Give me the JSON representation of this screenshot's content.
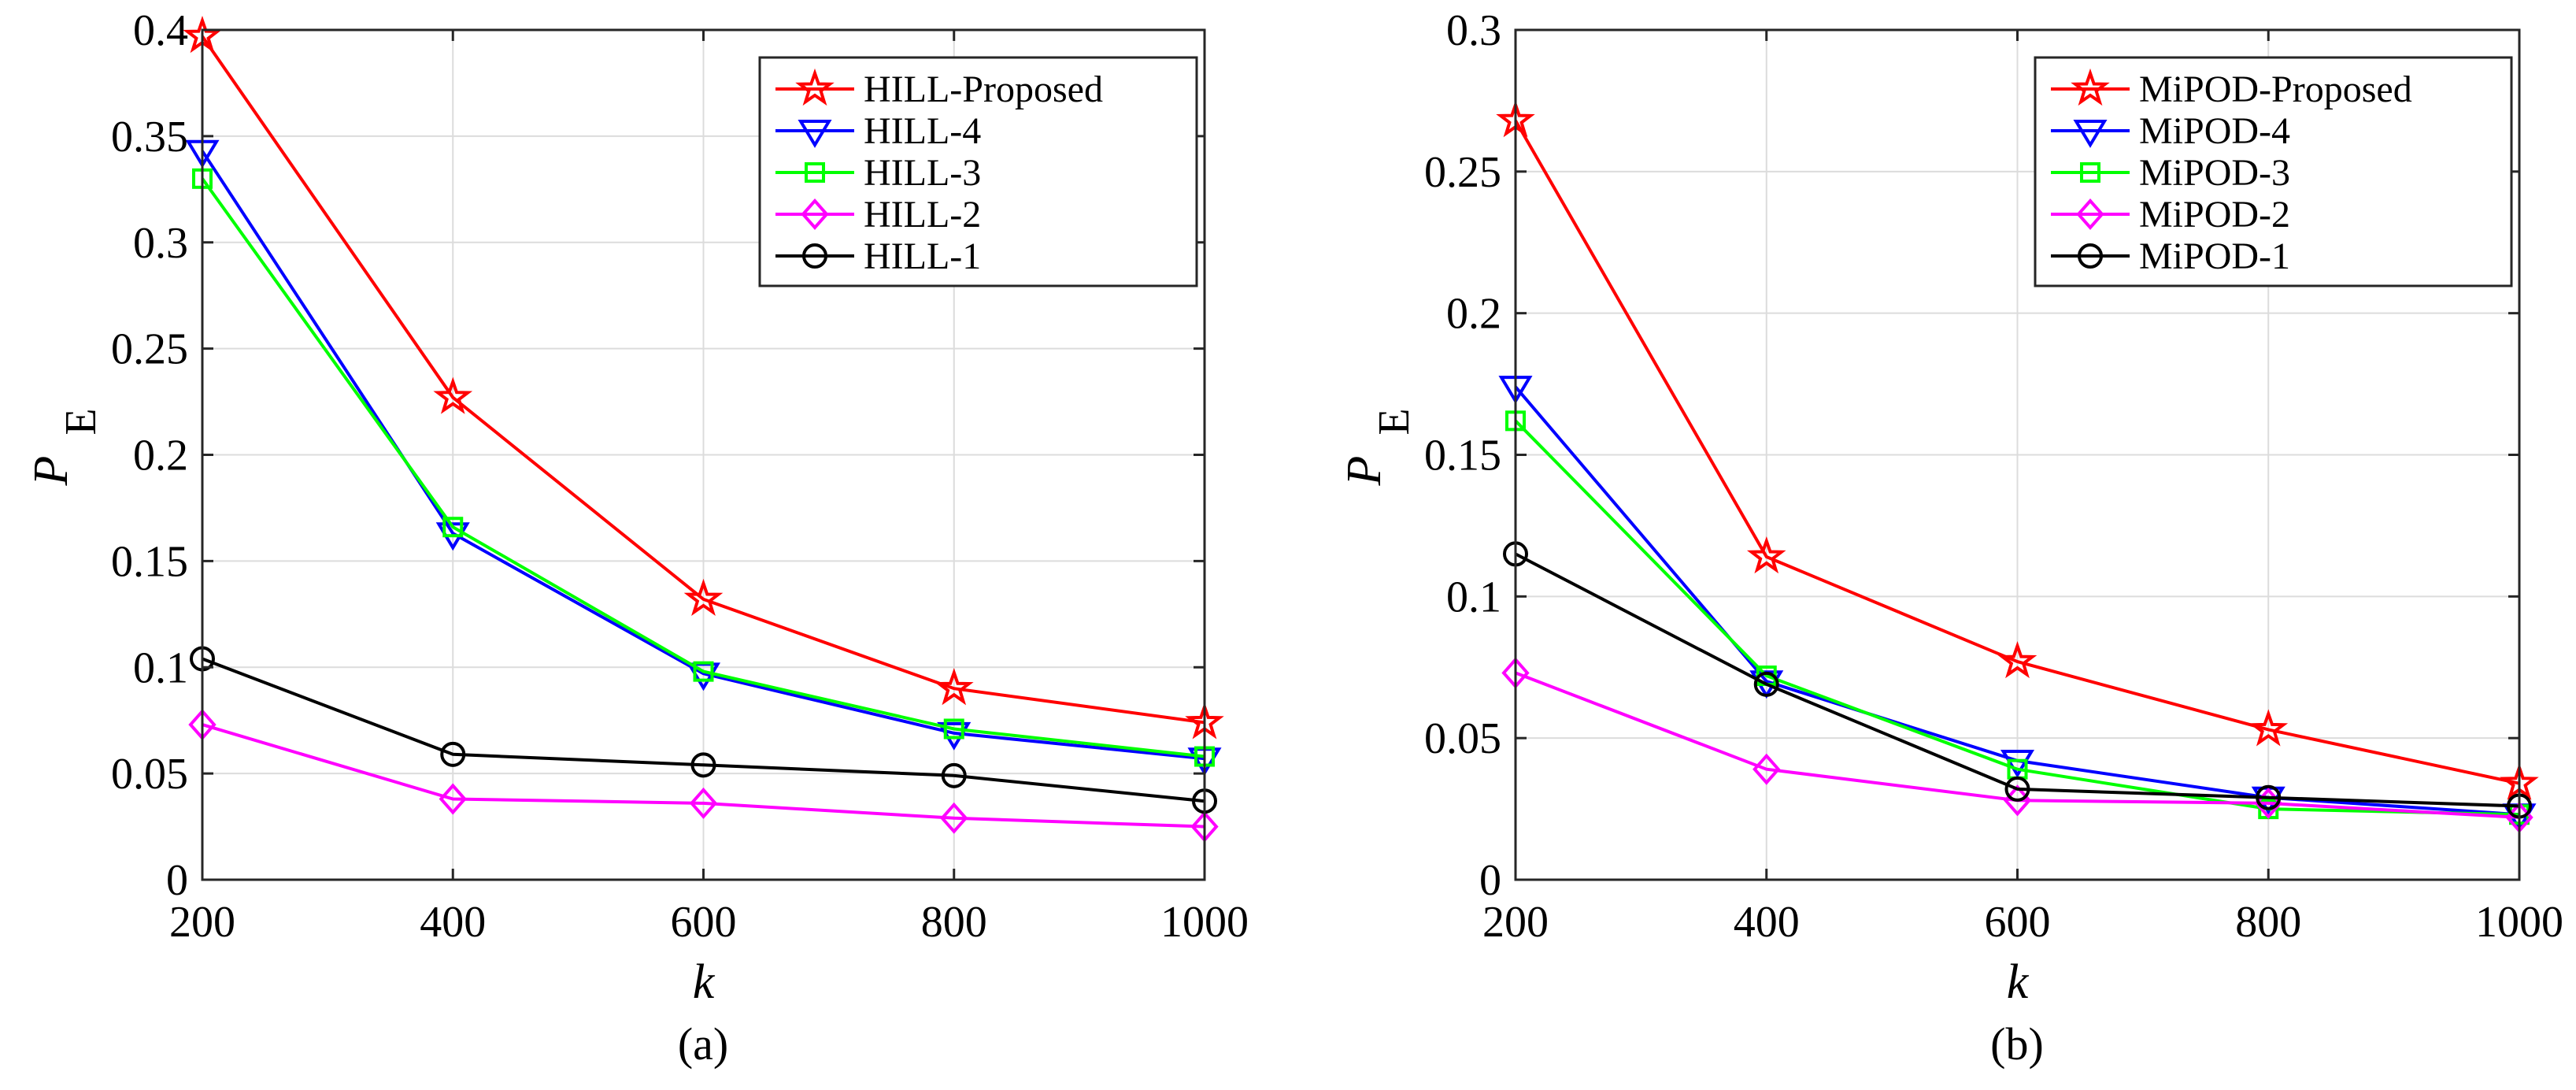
{
  "figure": {
    "panels": [
      {
        "caption": "(a)",
        "chart_data": {
          "type": "line",
          "title": "",
          "xlabel": "k",
          "ylabel_main": "P",
          "ylabel_sub": "E",
          "x": [
            200,
            400,
            600,
            800,
            1000
          ],
          "xlim": [
            200,
            1000
          ],
          "ylim": [
            0,
            0.4
          ],
          "xticks": [
            "200",
            "400",
            "600",
            "800",
            "1000"
          ],
          "yticks": [
            "0",
            "0.05",
            "0.1",
            "0.15",
            "0.2",
            "0.25",
            "0.3",
            "0.35",
            "0.4"
          ],
          "grid": true,
          "legend_position": "top-right",
          "series": [
            {
              "name": "HILL-Proposed",
              "color": "#ff0000",
              "marker": "star",
              "values": [
                0.397,
                0.227,
                0.132,
                0.09,
                0.074
              ]
            },
            {
              "name": "HILL-4",
              "color": "#0000ff",
              "marker": "triangle-down",
              "values": [
                0.343,
                0.163,
                0.097,
                0.069,
                0.057
              ]
            },
            {
              "name": "HILL-3",
              "color": "#00ff00",
              "marker": "square",
              "values": [
                0.33,
                0.166,
                0.098,
                0.071,
                0.058
              ]
            },
            {
              "name": "HILL-2",
              "color": "#ff00ff",
              "marker": "diamond",
              "values": [
                0.073,
                0.038,
                0.036,
                0.029,
                0.025
              ]
            },
            {
              "name": "HILL-1",
              "color": "#000000",
              "marker": "circle",
              "values": [
                0.104,
                0.059,
                0.054,
                0.049,
                0.037
              ]
            }
          ]
        }
      },
      {
        "caption": "(b)",
        "chart_data": {
          "type": "line",
          "title": "",
          "xlabel": "k",
          "ylabel_main": "P",
          "ylabel_sub": "E",
          "x": [
            200,
            400,
            600,
            800,
            1000
          ],
          "xlim": [
            200,
            1000
          ],
          "ylim": [
            0,
            0.3
          ],
          "xticks": [
            "200",
            "400",
            "600",
            "800",
            "1000"
          ],
          "yticks": [
            "0",
            "0.05",
            "0.1",
            "0.15",
            "0.2",
            "0.25",
            "0.3"
          ],
          "grid": true,
          "legend_position": "top-right",
          "series": [
            {
              "name": "MiPOD-Proposed",
              "color": "#ff0000",
              "marker": "star",
              "values": [
                0.268,
                0.114,
                0.077,
                0.053,
                0.034
              ]
            },
            {
              "name": "MiPOD-4",
              "color": "#0000ff",
              "marker": "triangle-down",
              "values": [
                0.174,
                0.07,
                0.042,
                0.029,
                0.023
              ]
            },
            {
              "name": "MiPOD-3",
              "color": "#00ff00",
              "marker": "square",
              "values": [
                0.162,
                0.072,
                0.039,
                0.025,
                0.023
              ]
            },
            {
              "name": "MiPOD-2",
              "color": "#ff00ff",
              "marker": "diamond",
              "values": [
                0.073,
                0.039,
                0.028,
                0.027,
                0.022
              ]
            },
            {
              "name": "MiPOD-1",
              "color": "#000000",
              "marker": "circle",
              "values": [
                0.115,
                0.069,
                0.032,
                0.029,
                0.026
              ]
            }
          ]
        }
      }
    ]
  }
}
